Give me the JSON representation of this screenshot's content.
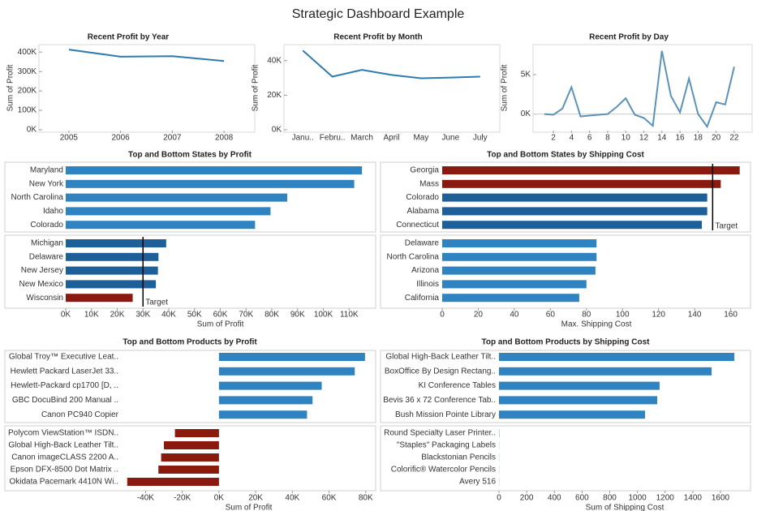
{
  "title": "Strategic Dashboard Example",
  "chart_data": [
    {
      "type": "line",
      "title": "Recent Profit by Year",
      "y_label": "Sum of Profit",
      "x": [
        2005,
        2006,
        2007,
        2008
      ],
      "values": [
        413000,
        376000,
        379000,
        354000
      ],
      "color": "#2e7bb0",
      "xlim": [
        2004.5,
        2008.5
      ],
      "xticks": [
        2005,
        2006,
        2007,
        2008
      ],
      "ylim": [
        0,
        430000
      ],
      "yticks": [
        {
          "value": 0,
          "label": "0K"
        },
        {
          "value": 100000,
          "label": "100K"
        },
        {
          "value": 200000,
          "label": "200K"
        },
        {
          "value": 300000,
          "label": "300K"
        },
        {
          "value": 400000,
          "label": "400K"
        }
      ]
    },
    {
      "type": "line",
      "title": "Recent Profit by Month",
      "y_label": "Sum of Profit",
      "categories": [
        "Janu..",
        "Febru..",
        "March",
        "April",
        "May",
        "June",
        "July"
      ],
      "values": [
        45800,
        30700,
        34600,
        31700,
        29800,
        30200,
        30700
      ],
      "color": "#2e7bb0",
      "ylim": [
        0,
        48300
      ],
      "yticks": [
        {
          "value": 0,
          "label": "0K"
        },
        {
          "value": 20000,
          "label": "20K"
        },
        {
          "value": 40000,
          "label": "40K"
        }
      ]
    },
    {
      "type": "line",
      "title": "Recent Profit by Day",
      "y_label": "Sum of Profit",
      "x": [
        1,
        2,
        3,
        4,
        5,
        6,
        7,
        8,
        9,
        10,
        11,
        12,
        13,
        14,
        15,
        16,
        17,
        18,
        19,
        20,
        21,
        22
      ],
      "values": [
        0,
        -100,
        700,
        3400,
        -300,
        -200,
        -100,
        0,
        900,
        2000,
        -100,
        -500,
        -1500,
        8000,
        2300,
        200,
        4500,
        0,
        -1600,
        1500,
        1200,
        6000
      ],
      "color": "#5b93b8",
      "zero_line": true,
      "xlim": [
        0.2,
        23.8
      ],
      "xticks": [
        2,
        4,
        6,
        8,
        10,
        12,
        14,
        16,
        18,
        20,
        22
      ],
      "ylim": [
        -2000,
        8600
      ],
      "yticks": [
        {
          "value": 0,
          "label": "0K"
        },
        {
          "value": 5000,
          "label": "5K"
        }
      ]
    },
    {
      "type": "hbar",
      "title": "Top and Bottom States by Profit",
      "x_label": "Sum of Profit",
      "panels": [
        {
          "categories": [
            "Maryland",
            "New York",
            "North Carolina",
            "Idaho",
            "Colorado"
          ],
          "values": [
            115000,
            112000,
            86000,
            79500,
            73500
          ],
          "colors": [
            "#2e83c0",
            "#2e83c0",
            "#2e83c0",
            "#2e83c0",
            "#2e83c0"
          ]
        },
        {
          "categories": [
            "Michigan",
            "Delaware",
            "New Jersey",
            "New Mexico",
            "Wisconsin"
          ],
          "values": [
            39000,
            36000,
            35800,
            35000,
            26000
          ],
          "colors": [
            "#1c5f99",
            "#1c5f99",
            "#1c5f99",
            "#1c5f99",
            "#8b1a0e"
          ],
          "target": 30000,
          "target_label": "Target"
        }
      ],
      "xlim": [
        0,
        120000
      ],
      "xticks": [
        {
          "value": 0,
          "label": "0K"
        },
        {
          "value": 10000,
          "label": "10K"
        },
        {
          "value": 20000,
          "label": "20K"
        },
        {
          "value": 30000,
          "label": "30K"
        },
        {
          "value": 40000,
          "label": "40K"
        },
        {
          "value": 50000,
          "label": "50K"
        },
        {
          "value": 60000,
          "label": "60K"
        },
        {
          "value": 70000,
          "label": "70K"
        },
        {
          "value": 80000,
          "label": "80K"
        },
        {
          "value": 90000,
          "label": "90K"
        },
        {
          "value": 100000,
          "label": "100K"
        },
        {
          "value": 110000,
          "label": "110K"
        }
      ]
    },
    {
      "type": "hbar",
      "title": "Top and Bottom States by Shipping Cost",
      "x_label": "Max. Shipping Cost",
      "panels": [
        {
          "categories": [
            "Georgia",
            "Mass",
            "Colorado",
            "Alabama",
            "Connecticut"
          ],
          "values": [
            165,
            154.5,
            147,
            147,
            144
          ],
          "colors": [
            "#8b1a0e",
            "#8b1a0e",
            "#1c5f99",
            "#1c5f99",
            "#1c5f99"
          ],
          "target": 150,
          "target_label": "Target"
        },
        {
          "categories": [
            "Delaware",
            "North Carolina",
            "Arizona",
            "Illinois",
            "California"
          ],
          "values": [
            85.6,
            85.6,
            85,
            80,
            76
          ],
          "colors": [
            "#2e83c0",
            "#2e83c0",
            "#2e83c0",
            "#2e83c0",
            "#2e83c0"
          ]
        }
      ],
      "xlim": [
        0,
        171
      ],
      "xticks": [
        0,
        20,
        40,
        60,
        80,
        100,
        120,
        140,
        160
      ]
    },
    {
      "type": "hbar",
      "title": "Top and Bottom Products by Profit",
      "x_label": "Sum of Profit",
      "panels": [
        {
          "categories": [
            "Global Troy™ Executive Leat..",
            "Hewlett Packard LaserJet 33..",
            "Hewlett-Packard cp1700 [D, ..",
            "GBC DocuBind 200 Manual ..",
            "Canon PC940 Copier"
          ],
          "values": [
            79600,
            74000,
            56000,
            51000,
            48000
          ],
          "colors": [
            "#2e83c0",
            "#2e83c0",
            "#2e83c0",
            "#2e83c0",
            "#2e83c0"
          ]
        },
        {
          "categories": [
            "Polycom ViewStation™ ISDN..",
            "Global High-Back Leather Tilt..",
            "Canon imageCLASS 2200 A..",
            "Epson DFX-8500 Dot Matrix ..",
            "Okidata Pacemark 4410N Wi.."
          ],
          "values": [
            -24000,
            -30000,
            -31500,
            -33000,
            -50000
          ],
          "colors": [
            "#8b1a0e",
            "#8b1a0e",
            "#8b1a0e",
            "#8b1a0e",
            "#8b1a0e"
          ]
        }
      ],
      "xlim": [
        -53000,
        85400
      ],
      "xticks": [
        {
          "value": -40000,
          "label": "-40K"
        },
        {
          "value": -20000,
          "label": "-20K"
        },
        {
          "value": 0,
          "label": "0K"
        },
        {
          "value": 20000,
          "label": "20K"
        },
        {
          "value": 40000,
          "label": "40K"
        },
        {
          "value": 60000,
          "label": "60K"
        },
        {
          "value": 80000,
          "label": "80K"
        }
      ]
    },
    {
      "type": "hbar",
      "title": "Top and Bottom Products by Shipping Cost",
      "x_label": "Sum of Shipping Cost",
      "panels": [
        {
          "categories": [
            "Global High-Back Leather Tilt..",
            "BoxOffice By Design Rectang..",
            "KI Conference Tables",
            "Bevis 36 x 72 Conference Tab..",
            "Bush Mission Pointe Library"
          ],
          "values": [
            1700,
            1536,
            1160,
            1143,
            1055
          ],
          "colors": [
            "#2e83c0",
            "#2e83c0",
            "#2e83c0",
            "#2e83c0",
            "#2e83c0"
          ]
        },
        {
          "categories": [
            "Round Specialty Laser Printer..",
            "\"Staples\" Packaging Labels",
            "Blackstonian Pencils",
            "Colorific® Watercolor Pencils",
            "Avery 516"
          ],
          "values": [
            2,
            1,
            1,
            1,
            1
          ],
          "colors": [
            "#2e83c0",
            "#2e83c0",
            "#2e83c0",
            "#2e83c0",
            "#2e83c0"
          ]
        }
      ],
      "xlim": [
        0,
        1817
      ],
      "xticks": [
        0,
        200,
        400,
        600,
        800,
        1000,
        1200,
        1400,
        1600
      ]
    }
  ]
}
